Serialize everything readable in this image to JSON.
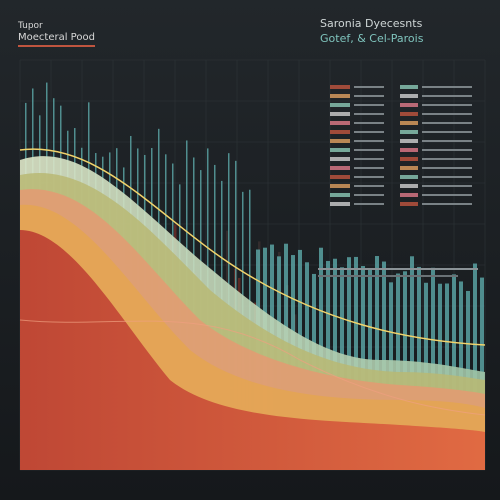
{
  "header": {
    "kicker": "Tupor",
    "title": "Moecteral Pood"
  },
  "panel": {
    "title": "Saronia Dyecesnts",
    "subtitle": "Gotef, & Cel-Parois"
  }
}
